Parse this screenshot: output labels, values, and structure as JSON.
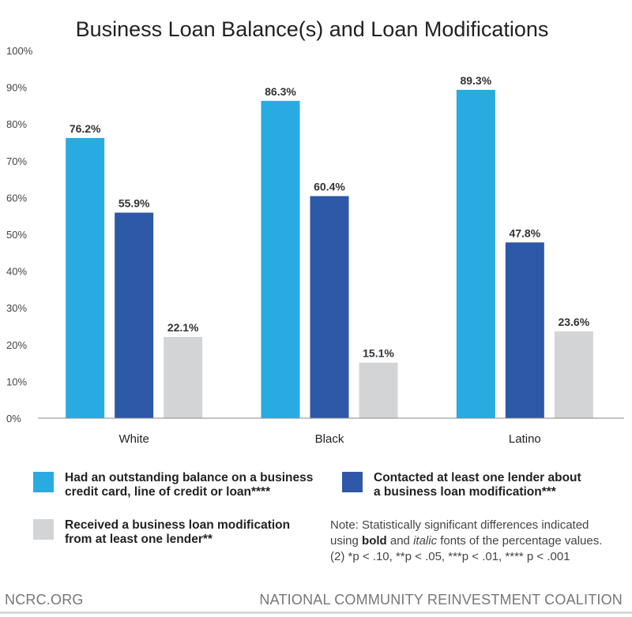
{
  "chart_data": {
    "type": "bar",
    "title": "Business Loan Balance(s) and Loan Modifications",
    "categories": [
      "White",
      "Black",
      "Latino"
    ],
    "ylim": [
      0,
      100
    ],
    "y_ticks": [
      "0%",
      "10%",
      "20%",
      "30%",
      "40%",
      "50%",
      "60%",
      "70%",
      "80%",
      "90%",
      "100%"
    ],
    "grid": false,
    "legend_position": "bottom",
    "series": [
      {
        "name": "Had an outstanding balance on a business credit card, line of credit or loan****",
        "values": [
          76.2,
          86.3,
          89.3
        ],
        "labels": [
          "76.2%",
          "86.3%",
          "89.3%"
        ],
        "color": "#29ABE2"
      },
      {
        "name": "Contacted at least one lender about a business loan modification***",
        "values": [
          55.9,
          60.4,
          47.8
        ],
        "labels": [
          "55.9%",
          "60.4%",
          "47.8%"
        ],
        "color": "#2E58A8"
      },
      {
        "name": "Received a business loan modification from at least one lender**",
        "values": [
          22.1,
          15.1,
          23.6
        ],
        "labels": [
          "22.1%",
          "15.1%",
          "23.6%"
        ],
        "color": "#D3D4D6"
      }
    ]
  },
  "legend": {
    "item1_line1": "Had an outstanding balance on a business",
    "item1_line2": "credit card, line of credit or loan****",
    "item2_line1": "Contacted at least one lender about",
    "item2_line2": "a business loan modification***",
    "item3_line1": "Received a business loan modification",
    "item3_line2": "from at least one lender**"
  },
  "note": {
    "line1": "Note: Statistically significant differences indicated",
    "line2_pre": "using ",
    "line2_bold": "bold",
    "line2_mid": " and ",
    "line2_italic": "italic",
    "line2_post": " fonts of the percentage values.",
    "line3": "(2) *p < .10, **p < .05, ***p < .01, **** p < .001"
  },
  "footer": {
    "left": "NCRC.ORG",
    "right": "NATIONAL COMMUNITY REINVESTMENT COALITION"
  }
}
